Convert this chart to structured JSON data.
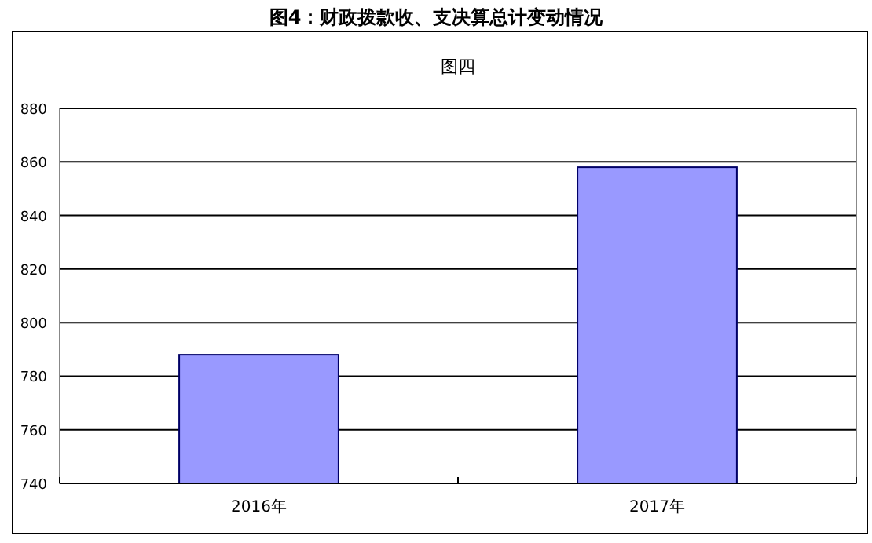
{
  "chart_data": {
    "type": "bar",
    "title": "图4：财政拨款收、支决算总计变动情况",
    "subtitle": "图四",
    "categories": [
      "2016年",
      "2017年"
    ],
    "values": [
      788,
      858
    ],
    "color": "#9999ff",
    "ylim": [
      740,
      880
    ],
    "yticks": [
      740,
      760,
      780,
      800,
      820,
      840,
      860,
      880
    ],
    "grid": "y"
  }
}
